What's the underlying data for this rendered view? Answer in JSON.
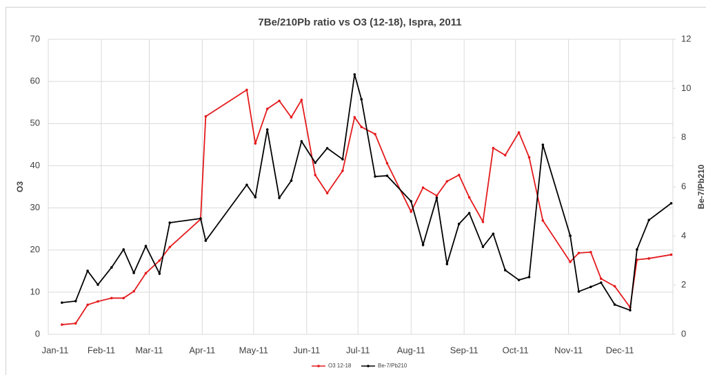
{
  "chart_data": {
    "type": "line",
    "title": "7Be/210Pb ratio vs O3 (12-18), Ispra, 2011",
    "y_label": "O3",
    "y2_label": "Be-7/Pb210",
    "x": [
      8,
      16,
      23,
      29,
      37,
      44,
      50,
      57,
      65,
      71,
      89,
      92,
      116,
      121,
      128,
      135,
      142,
      148,
      156,
      163,
      172,
      179,
      183,
      191,
      198,
      212,
      219,
      227,
      233,
      240,
      246,
      254,
      260,
      267,
      275,
      281,
      289,
      305,
      310,
      317,
      323,
      331,
      340,
      344,
      351,
      364
    ],
    "series": [
      {
        "name": "O3 12-18",
        "color": "#e41a1c",
        "axis": "y",
        "values": [
          2.3,
          2.6,
          7.0,
          7.8,
          8.6,
          8.6,
          10.2,
          14.5,
          17.5,
          20.7,
          27.3,
          51.7,
          58.0,
          45.3,
          53.5,
          55.4,
          51.5,
          55.6,
          37.8,
          33.5,
          38.8,
          51.5,
          49.2,
          47.5,
          40.6,
          29.1,
          34.8,
          32.9,
          36.3,
          37.8,
          32.5,
          26.7,
          44.2,
          42.5,
          47.9,
          42.0,
          27.0,
          17.2,
          19.3,
          19.5,
          13.2,
          11.4,
          6.4,
          17.7,
          18.0,
          18.9
        ]
      },
      {
        "name": "Be-7/Pb210",
        "color": "#000000",
        "axis": "y2",
        "values": [
          1.29,
          1.35,
          2.58,
          2.02,
          2.72,
          3.45,
          2.5,
          3.59,
          2.47,
          4.54,
          4.71,
          3.81,
          6.08,
          5.58,
          8.33,
          5.55,
          6.25,
          7.85,
          6.98,
          7.57,
          7.12,
          10.57,
          9.56,
          6.42,
          6.45,
          5.41,
          3.64,
          5.55,
          2.86,
          4.49,
          4.93,
          3.56,
          4.09,
          2.61,
          2.21,
          2.33,
          7.71,
          4.01,
          1.74,
          1.93,
          2.1,
          1.21,
          0.98,
          3.45,
          4.65,
          5.33
        ]
      }
    ],
    "xlim": [
      0,
      365
    ],
    "xticks": [
      {
        "value": 0,
        "label": "Jan-11"
      },
      {
        "value": 31,
        "label": "Feb-11"
      },
      {
        "value": 59,
        "label": "Mar-11"
      },
      {
        "value": 90,
        "label": "Apr-11"
      },
      {
        "value": 120,
        "label": "May-11"
      },
      {
        "value": 151,
        "label": "Jun-11"
      },
      {
        "value": 181,
        "label": "Jul-11"
      },
      {
        "value": 212,
        "label": "Aug-11"
      },
      {
        "value": 243,
        "label": "Sep-11"
      },
      {
        "value": 273,
        "label": "Oct-11"
      },
      {
        "value": 304,
        "label": "Nov-11"
      },
      {
        "value": 334,
        "label": "Dec-11"
      }
    ],
    "ylim": [
      0,
      70
    ],
    "yticks": [
      0,
      10,
      20,
      30,
      40,
      50,
      60,
      70
    ],
    "y2lim": [
      0,
      12
    ],
    "y2ticks": [
      0,
      2,
      4,
      6,
      8,
      10,
      12
    ],
    "grid": true,
    "legend": "bottom"
  }
}
